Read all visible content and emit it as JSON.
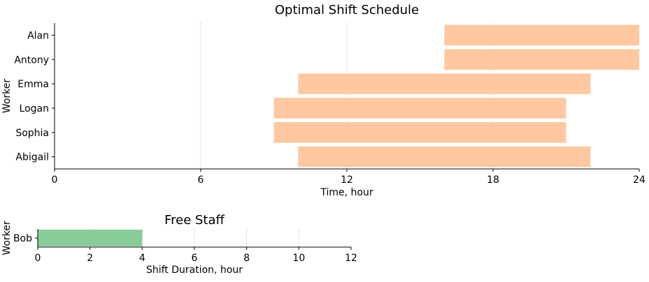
{
  "chart_data": [
    {
      "type": "bar",
      "orientation": "horizontal",
      "title": "Optimal Shift Schedule",
      "xlabel": "Time, hour",
      "ylabel": "Worker",
      "xlim": [
        0,
        24
      ],
      "xticks": [
        0,
        6,
        12,
        18,
        24
      ],
      "grid": "x",
      "bar_color": "#FFC8A0",
      "categories": [
        "Alan",
        "Antony",
        "Emma",
        "Logan",
        "Sophia",
        "Abigail"
      ],
      "shifts": [
        {
          "worker": "Alan",
          "start": 16,
          "end": 24
        },
        {
          "worker": "Antony",
          "start": 16,
          "end": 24
        },
        {
          "worker": "Emma",
          "start": 10,
          "end": 22
        },
        {
          "worker": "Logan",
          "start": 9,
          "end": 21
        },
        {
          "worker": "Sophia",
          "start": 9,
          "end": 21
        },
        {
          "worker": "Abigail",
          "start": 10,
          "end": 22
        }
      ]
    },
    {
      "type": "bar",
      "orientation": "horizontal",
      "title": "Free Staff",
      "xlabel": "Shift Duration, hour",
      "ylabel": "Worker",
      "xlim": [
        0,
        12
      ],
      "xticks": [
        0,
        2,
        4,
        6,
        8,
        10,
        12
      ],
      "grid": "x",
      "bar_color": "#88CC99",
      "categories": [
        "Bob"
      ],
      "values": [
        4
      ]
    }
  ]
}
